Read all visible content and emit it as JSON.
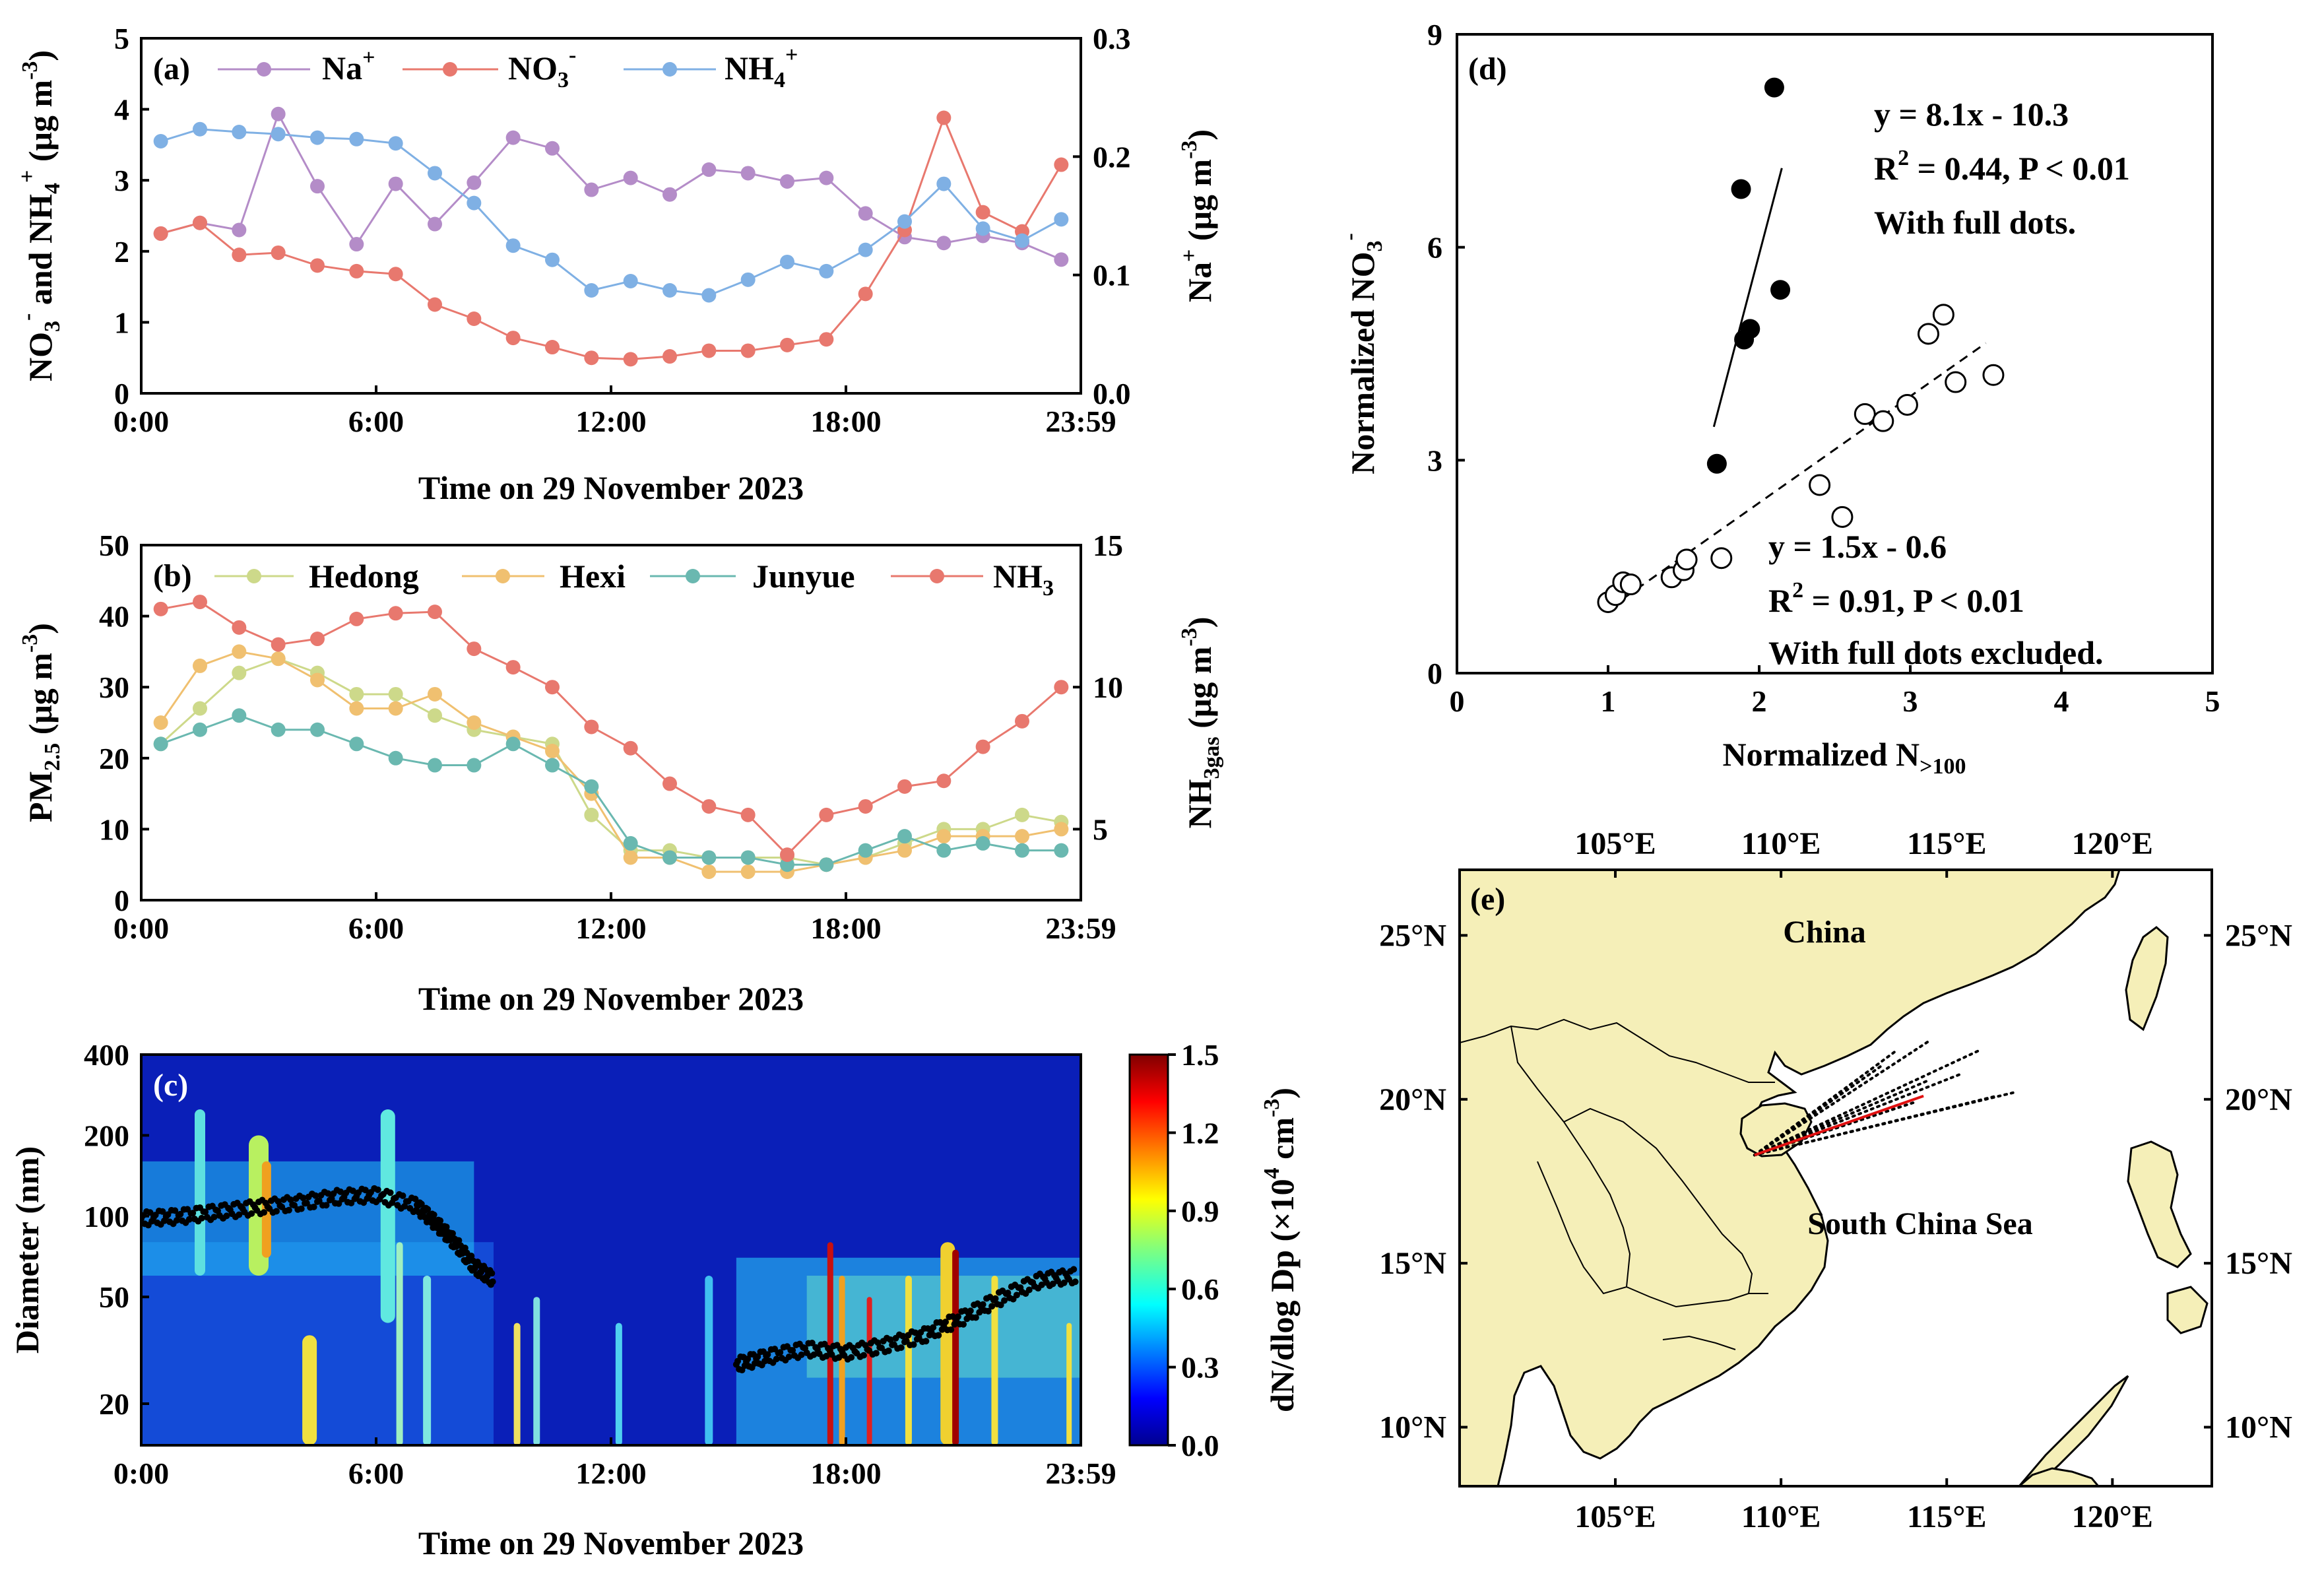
{
  "chart_data": [
    {
      "panel": "(a)",
      "type": "line",
      "xlabel": "Time on 29 November 2023",
      "ylabel_left": "NO3- and NH4+ (μg m-3)",
      "ylabel_left_parts": {
        "t1": "NO",
        "s1": "3",
        "p1": "-",
        "t2": " and NH",
        "s2": "4",
        "p2": "+",
        "t3": " (μg m",
        "p3": "-3",
        "t4": ")"
      },
      "ylabel_right": "Na+ (μg m-3)",
      "ylabel_right_parts": {
        "t1": "Na",
        "p1": "+",
        "t2": " (μg m",
        "p2": "-3",
        "t3": ")"
      },
      "xticks": [
        "0:00",
        "6:00",
        "12:00",
        "18:00",
        "23:59"
      ],
      "ylim_left": [
        0,
        5
      ],
      "yticks_left": [
        "0",
        "1",
        "2",
        "3",
        "4",
        "5"
      ],
      "ylim_right": [
        0,
        0.3
      ],
      "yticks_right": [
        "0.0",
        "0.1",
        "0.2",
        "0.3"
      ],
      "x_hours": [
        0,
        1,
        2,
        3,
        4,
        5,
        6,
        7,
        8,
        9,
        10,
        11,
        12,
        13,
        14,
        15,
        16,
        17,
        18,
        19,
        20,
        21,
        22,
        23
      ],
      "legend": [
        {
          "name": "Na",
          "sup": "+"
        },
        {
          "name": "NO",
          "sub": "3",
          "sup": "-"
        },
        {
          "name": "NH",
          "sub": "4",
          "sup": "+"
        }
      ],
      "series": [
        {
          "name": "Na+",
          "axis": "right",
          "color": "#b48cc8",
          "values": [
            0.135,
            0.144,
            0.138,
            0.236,
            0.175,
            0.126,
            0.177,
            0.143,
            0.178,
            0.216,
            0.207,
            0.172,
            0.182,
            0.168,
            0.189,
            0.186,
            0.179,
            0.182,
            0.152,
            0.132,
            0.127,
            0.133,
            0.127,
            0.113
          ]
        },
        {
          "name": "NO3-",
          "axis": "left",
          "color": "#e8786e",
          "values": [
            2.25,
            2.4,
            1.95,
            1.98,
            1.8,
            1.72,
            1.68,
            1.25,
            1.05,
            0.78,
            0.65,
            0.5,
            0.48,
            0.52,
            0.6,
            0.6,
            0.68,
            0.76,
            1.4,
            2.3,
            3.88,
            2.55,
            2.28,
            3.22
          ]
        },
        {
          "name": "NH4+",
          "axis": "left",
          "color": "#7fb0e4",
          "values": [
            3.55,
            3.72,
            3.68,
            3.65,
            3.6,
            3.58,
            3.52,
            3.1,
            2.68,
            2.08,
            1.88,
            1.45,
            1.58,
            1.45,
            1.38,
            1.6,
            1.85,
            1.72,
            2.02,
            2.42,
            2.95,
            2.32,
            2.15,
            2.45
          ]
        }
      ]
    },
    {
      "panel": "(b)",
      "type": "line",
      "xlabel": "Time on 29 November 2023",
      "ylabel_left": "PM2.5 (μg m-3)",
      "ylabel_left_parts": {
        "t1": "PM",
        "s1": "2.5",
        "t2": " (μg m",
        "p1": "-3",
        "t3": ")"
      },
      "ylabel_right": "NH3gas (μg m-3)",
      "ylabel_right_parts": {
        "t1": "NH",
        "s1": "3gas",
        "t2": " (μg m",
        "p1": "-3",
        "t3": ")"
      },
      "xticks": [
        "0:00",
        "6:00",
        "12:00",
        "18:00",
        "23:59"
      ],
      "ylim_left": [
        0,
        50
      ],
      "yticks_left": [
        "0",
        "10",
        "20",
        "30",
        "40",
        "50"
      ],
      "ylim_right": [
        2.5,
        15
      ],
      "yticks_right": [
        "5",
        "10",
        "15"
      ],
      "x_hours": [
        0,
        1,
        2,
        3,
        4,
        5,
        6,
        7,
        8,
        9,
        10,
        11,
        12,
        13,
        14,
        15,
        16,
        17,
        18,
        19,
        20,
        21,
        22,
        23
      ],
      "legend": [
        {
          "name": "Hedong"
        },
        {
          "name": "Hexi"
        },
        {
          "name": "Junyue"
        },
        {
          "name": "NH",
          "sub": "3"
        }
      ],
      "series": [
        {
          "name": "Hedong",
          "axis": "left",
          "color": "#cdd98a",
          "values": [
            22,
            27,
            32,
            34,
            32,
            29,
            29,
            26,
            24,
            23,
            22,
            12,
            7,
            7,
            6,
            6,
            6,
            5,
            6,
            8,
            10,
            10,
            12,
            11
          ]
        },
        {
          "name": "Hexi",
          "axis": "left",
          "color": "#f0c070",
          "values": [
            25,
            33,
            35,
            34,
            31,
            27,
            27,
            29,
            25,
            23,
            21,
            15,
            6,
            6,
            4,
            4,
            4,
            5,
            6,
            7,
            9,
            9,
            9,
            10
          ]
        },
        {
          "name": "Junyue",
          "axis": "left",
          "color": "#6ab8b0",
          "values": [
            22,
            24,
            26,
            24,
            24,
            22,
            20,
            19,
            19,
            22,
            19,
            16,
            8,
            6,
            6,
            6,
            5,
            5,
            7,
            9,
            7,
            8,
            7,
            7
          ]
        },
        {
          "name": "NH3",
          "axis": "right",
          "color": "#e8786e",
          "values": [
            12.75,
            13.0,
            12.1,
            11.5,
            11.7,
            12.4,
            12.6,
            12.65,
            11.35,
            10.7,
            10.0,
            8.6,
            7.85,
            6.6,
            5.8,
            5.5,
            4.1,
            5.5,
            5.8,
            6.5,
            6.7,
            7.9,
            8.8,
            10.0
          ]
        }
      ]
    },
    {
      "panel": "(c)",
      "type": "heatmap",
      "xlabel": "Time on 29 November 2023",
      "ylabel": "Diameter (nm)",
      "xticks": [
        "0:00",
        "6:00",
        "12:00",
        "18:00",
        "23:59"
      ],
      "yticks": [
        "20",
        "50",
        "100",
        "200",
        "400"
      ],
      "ylim": [
        14,
        400
      ],
      "yscale": "log",
      "colorbar_label": "dN/dlog Dp (×10^4 cm^-3)",
      "colorbar_label_parts": {
        "t1": "dN/dlog Dp (×10",
        "p1": "4",
        "t2": " cm",
        "p2": "-3",
        "t3": ")"
      },
      "colorbar_ticks": [
        "0.0",
        "0.3",
        "0.6",
        "0.9",
        "1.2",
        "1.5"
      ],
      "colorbar_range": [
        0,
        1.5
      ],
      "mode_diameter_series_1": {
        "hours": [
          0,
          1,
          2,
          3,
          4,
          5,
          6,
          7,
          7.5,
          8,
          8.5,
          9
        ],
        "diameter_nm": [
          98,
          100,
          104,
          108,
          112,
          118,
          120,
          110,
          95,
          80,
          65,
          58
        ]
      },
      "mode_diameter_series_2": {
        "hours": [
          15.2,
          16,
          17,
          18,
          19,
          20,
          21,
          22,
          23,
          23.9
        ],
        "diameter_nm": [
          28,
          30,
          32,
          31,
          33,
          36,
          42,
          50,
          58,
          60
        ]
      }
    },
    {
      "panel": "(d)",
      "type": "scatter",
      "xlabel": "Normalized N>100",
      "xlabel_parts": {
        "t1": "Normalized N",
        "s1": ">100"
      },
      "ylabel": "Normalized NO3-",
      "ylabel_parts": {
        "t1": "Normalized NO",
        "s1": "3",
        "p1": "-"
      },
      "xlim": [
        0,
        5
      ],
      "ylim": [
        0,
        9
      ],
      "xticks": [
        "0",
        "1",
        "2",
        "3",
        "4",
        "5"
      ],
      "yticks": [
        "0",
        "3",
        "6",
        "9"
      ],
      "full_dots": {
        "x": [
          1.72,
          1.88,
          1.9,
          1.94,
          2.1,
          2.14
        ],
        "y": [
          2.95,
          6.82,
          4.7,
          4.85,
          8.25,
          5.4
        ]
      },
      "open_dots": {
        "x": [
          1.0,
          1.05,
          1.1,
          1.15,
          1.42,
          1.5,
          1.52,
          1.75,
          2.4,
          2.55,
          2.7,
          2.82,
          2.98,
          3.12,
          3.22,
          3.3,
          3.55
        ],
        "y": [
          1.0,
          1.1,
          1.28,
          1.25,
          1.35,
          1.45,
          1.6,
          1.62,
          2.65,
          2.2,
          3.65,
          3.55,
          3.78,
          4.78,
          5.05,
          4.1,
          4.2
        ]
      },
      "fit_full": {
        "x0": 1.7,
        "x1": 2.15,
        "slope": 8.1,
        "intercept": -10.3
      },
      "fit_open": {
        "x0": 1.1,
        "x1": 3.5,
        "slope": 1.5,
        "intercept": -0.6
      },
      "annotations": {
        "full_eq": "y = 8.1x - 10.3",
        "full_r2_a": "R",
        "full_r2_b": "2",
        "full_r2_c": " = 0.44, P < 0.01",
        "full_note": "With full dots.",
        "open_eq": "y = 1.5x - 0.6",
        "open_r2_a": "R",
        "open_r2_b": "2",
        "open_r2_c": " = 0.91, P < 0.01",
        "open_note": "With full dots excluded."
      }
    }
  ],
  "map": {
    "panel": "(e)",
    "lon_ticks": [
      "105°E",
      "110°E",
      "115°E",
      "120°E"
    ],
    "lat_ticks": [
      "25°N",
      "20°N",
      "15°N",
      "10°N"
    ],
    "labels": {
      "china": "China",
      "sea": "South China Sea"
    },
    "lon_range": [
      100.3,
      123.0
    ],
    "lat_range": [
      8.2,
      27.0
    ],
    "land_color": "#f5efb8",
    "trajectory_origin_lonlat": [
      109.2,
      18.3
    ],
    "trajectory_ends_lonlat": [
      [
        113.5,
        21.5
      ],
      [
        114.5,
        21.8
      ],
      [
        116.0,
        21.5
      ],
      [
        116.5,
        20.1
      ],
      [
        114.5,
        20.6
      ],
      [
        113.0,
        21.0
      ],
      [
        115.5,
        20.8
      ],
      [
        114.0,
        19.9
      ],
      [
        117.0,
        20.2
      ]
    ],
    "mean_trajectory_end_lonlat": [
      114.3,
      20.1
    ]
  }
}
